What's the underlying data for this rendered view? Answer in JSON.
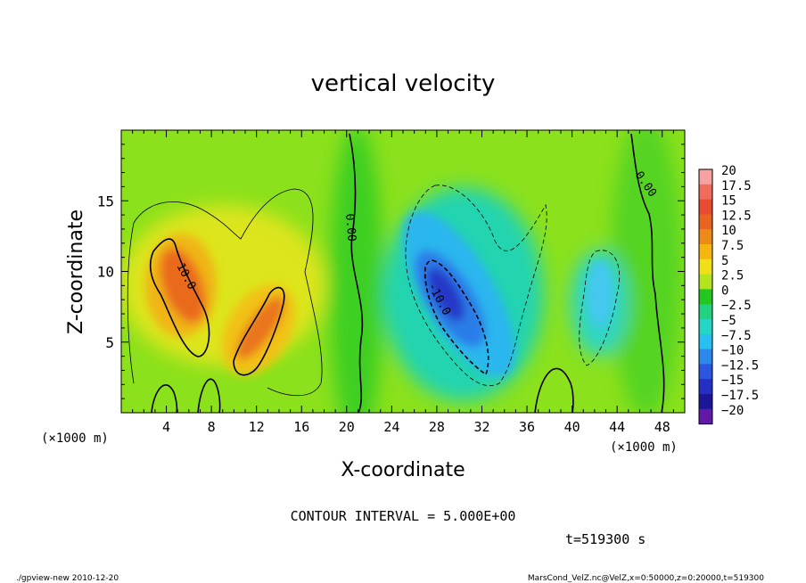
{
  "chart_data": {
    "type": "heatmap",
    "title": "vertical velocity",
    "xlabel": "X-coordinate",
    "ylabel": "Z-coordinate",
    "x_unit": "(×1000 m)",
    "y_unit": "(×1000 m)",
    "xlim": [
      0,
      50
    ],
    "ylim": [
      0,
      20
    ],
    "x_ticks": [
      4,
      8,
      12,
      16,
      20,
      24,
      28,
      32,
      36,
      40,
      44,
      48
    ],
    "y_ticks": [
      5,
      10,
      15
    ],
    "contour_interval_text": "CONTOUR INTERVAL = 5.000E+00",
    "time_text": "t=519300 s",
    "contour_labels": [
      {
        "text": "10.0",
        "x": 6.0,
        "z": 10.0
      },
      {
        "text": "-10.0",
        "x": 28.3,
        "z": 8.0
      },
      {
        "text": "0.00",
        "x": 19.9,
        "z": 12.5
      },
      {
        "text": "0.00",
        "x": 46.4,
        "z": 15.4
      }
    ],
    "colorbar": {
      "labels": [
        "20",
        "17.5",
        "15",
        "12.5",
        "10",
        "7.5",
        "5",
        "2.5",
        "0",
        "−2.5",
        "−5",
        "−7.5",
        "−10",
        "−12.5",
        "−15",
        "−17.5",
        "−20"
      ],
      "values": [
        20,
        17.5,
        15,
        12.5,
        10,
        7.5,
        5,
        2.5,
        0,
        -2.5,
        -5,
        -7.5,
        -10,
        -12.5,
        -15,
        -17.5,
        -20
      ],
      "colors": [
        "#f7a2a0",
        "#f26c5c",
        "#ea4a2f",
        "#e8641f",
        "#ee8a17",
        "#f7b60d",
        "#f1df18",
        "#b4e51c",
        "#22c81e",
        "#21d27f",
        "#22d7c6",
        "#27c1f1",
        "#2b88ec",
        "#2c55e2",
        "#262fc5",
        "#1c1798",
        "#6219a8"
      ]
    },
    "features": [
      {
        "kind": "updraft",
        "x": 5.8,
        "z": 9.0,
        "peak": 13
      },
      {
        "kind": "updraft",
        "x": 12.5,
        "z": 5.5,
        "peak": 11
      },
      {
        "kind": "downdraft",
        "x": 29.5,
        "z": 7.5,
        "peak": -14
      },
      {
        "kind": "downdraft",
        "x": 43.5,
        "z": 7.0,
        "peak": -6
      }
    ]
  },
  "footer": {
    "left": "./gpview-new   2010-12-20",
    "right": "MarsCond_VelZ.nc@VelZ,x=0:50000,z=0:20000,t=519300"
  }
}
